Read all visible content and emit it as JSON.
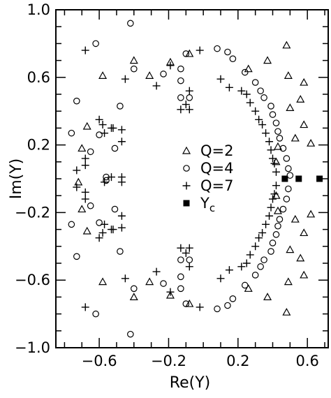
{
  "chart_data": {
    "type": "scatter",
    "title": "",
    "xlabel": "Re(Y)",
    "ylabel": "Im(Y)",
    "xlim": [
      -0.85,
      0.72
    ],
    "ylim": [
      -1.0,
      1.0
    ],
    "grid": false,
    "legend_position": "center-right",
    "x_ticks": [
      -0.6,
      -0.2,
      0.2,
      0.6
    ],
    "x_tick_labels": [
      "−0.6",
      "−0.2",
      "0.2",
      "0.6"
    ],
    "y_ticks": [
      1.0,
      0.6,
      0.2,
      -0.2,
      -0.6,
      -1.0
    ],
    "y_tick_labels": [
      "1.0",
      "0.6",
      "0.2",
      "−0.2",
      "−0.6",
      "−1.0"
    ],
    "series": [
      {
        "name": "Q=2",
        "marker": "triangle",
        "points": [
          [
            0.48,
            0.79
          ],
          [
            0.37,
            0.7
          ],
          [
            0.26,
            0.65
          ],
          [
            0.49,
            0.61
          ],
          [
            0.58,
            0.57
          ],
          [
            0.56,
            0.47
          ],
          [
            0.5,
            0.42
          ],
          [
            0.58,
            0.32
          ],
          [
            0.62,
            0.21
          ],
          [
            0.53,
            0.24
          ],
          [
            0.43,
            0.19
          ],
          [
            0.42,
            0.1
          ],
          [
            -0.08,
            0.74
          ],
          [
            -0.19,
            0.69
          ],
          [
            -0.31,
            0.61
          ],
          [
            -0.4,
            0.7
          ],
          [
            -0.58,
            0.61
          ],
          [
            -0.67,
            0.31
          ],
          [
            -0.7,
            0.18
          ],
          [
            -0.72,
            -0.02
          ],
          [
            0.48,
            -0.79
          ],
          [
            0.37,
            -0.7
          ],
          [
            0.26,
            -0.65
          ],
          [
            0.49,
            -0.61
          ],
          [
            0.58,
            -0.57
          ],
          [
            0.56,
            -0.47
          ],
          [
            0.5,
            -0.42
          ],
          [
            0.58,
            -0.32
          ],
          [
            0.62,
            -0.21
          ],
          [
            0.53,
            -0.24
          ],
          [
            0.43,
            -0.19
          ],
          [
            0.42,
            -0.1
          ],
          [
            -0.08,
            -0.74
          ],
          [
            -0.19,
            -0.69
          ],
          [
            -0.31,
            -0.61
          ],
          [
            -0.4,
            -0.7
          ],
          [
            -0.58,
            -0.61
          ],
          [
            -0.67,
            -0.31
          ],
          [
            -0.7,
            -0.18
          ]
        ]
      },
      {
        "name": "Q=4",
        "marker": "circle",
        "points": [
          [
            -0.42,
            0.92
          ],
          [
            -0.62,
            0.8
          ],
          [
            -0.1,
            0.74
          ],
          [
            0.08,
            0.77
          ],
          [
            0.14,
            0.75
          ],
          [
            -0.4,
            0.65
          ],
          [
            -0.23,
            0.62
          ],
          [
            -0.13,
            0.65
          ],
          [
            -0.13,
            0.58
          ],
          [
            -0.13,
            0.48
          ],
          [
            -0.08,
            0.48
          ],
          [
            -0.73,
            0.46
          ],
          [
            -0.48,
            0.43
          ],
          [
            -0.76,
            0.27
          ],
          [
            -0.6,
            0.26
          ],
          [
            -0.65,
            0.16
          ],
          [
            -0.51,
            0.18
          ],
          [
            -0.56,
            0.01
          ],
          [
            0.17,
            0.71
          ],
          [
            0.24,
            0.63
          ],
          [
            0.3,
            0.57
          ],
          [
            0.33,
            0.52
          ],
          [
            0.35,
            0.48
          ],
          [
            0.39,
            0.43
          ],
          [
            0.4,
            0.38
          ],
          [
            0.42,
            0.33
          ],
          [
            0.43,
            0.28
          ],
          [
            0.44,
            0.24
          ],
          [
            0.46,
            0.18
          ],
          [
            0.48,
            0.12
          ],
          [
            0.49,
            0.06
          ],
          [
            0.5,
            0.02
          ],
          [
            -0.42,
            -0.92
          ],
          [
            -0.62,
            -0.8
          ],
          [
            -0.1,
            -0.74
          ],
          [
            0.08,
            -0.77
          ],
          [
            0.14,
            -0.75
          ],
          [
            -0.4,
            -0.65
          ],
          [
            -0.23,
            -0.62
          ],
          [
            -0.13,
            -0.65
          ],
          [
            -0.13,
            -0.58
          ],
          [
            -0.13,
            -0.48
          ],
          [
            -0.08,
            -0.48
          ],
          [
            -0.73,
            -0.46
          ],
          [
            -0.48,
            -0.43
          ],
          [
            -0.76,
            -0.27
          ],
          [
            -0.6,
            -0.26
          ],
          [
            -0.65,
            -0.16
          ],
          [
            -0.51,
            -0.18
          ],
          [
            -0.56,
            -0.01
          ],
          [
            0.17,
            -0.71
          ],
          [
            0.24,
            -0.63
          ],
          [
            0.3,
            -0.57
          ],
          [
            0.33,
            -0.52
          ],
          [
            0.35,
            -0.48
          ],
          [
            0.39,
            -0.43
          ],
          [
            0.4,
            -0.38
          ],
          [
            0.42,
            -0.33
          ],
          [
            0.43,
            -0.28
          ],
          [
            0.44,
            -0.24
          ],
          [
            0.46,
            -0.18
          ],
          [
            0.48,
            -0.12
          ],
          [
            0.49,
            -0.06
          ]
        ]
      },
      {
        "name": "Q=7",
        "marker": "plus",
        "points": [
          [
            -0.68,
            0.76
          ],
          [
            -0.02,
            0.76
          ],
          [
            -0.6,
            0.35
          ],
          [
            -0.58,
            0.32
          ],
          [
            -0.57,
            0.27
          ],
          [
            -0.53,
            0.3
          ],
          [
            -0.52,
            0.3
          ],
          [
            -0.47,
            0.29
          ],
          [
            -0.47,
            0.22
          ],
          [
            -0.68,
            0.12
          ],
          [
            -0.68,
            0.08
          ],
          [
            -0.73,
            0.05
          ],
          [
            -0.53,
            0.01
          ],
          [
            -0.57,
            -0.02
          ],
          [
            -0.47,
            0.01
          ],
          [
            -0.47,
            -0.02
          ],
          [
            -0.27,
            0.55
          ],
          [
            -0.08,
            0.52
          ],
          [
            -0.1,
            0.44
          ],
          [
            -0.13,
            0.41
          ],
          [
            -0.08,
            0.41
          ],
          [
            -0.45,
            0.59
          ],
          [
            -0.19,
            0.67
          ],
          [
            0.1,
            0.59
          ],
          [
            0.15,
            0.54
          ],
          [
            0.22,
            0.52
          ],
          [
            0.25,
            0.5
          ],
          [
            0.27,
            0.45
          ],
          [
            0.3,
            0.4
          ],
          [
            0.32,
            0.35
          ],
          [
            0.34,
            0.32
          ],
          [
            0.36,
            0.27
          ],
          [
            0.38,
            0.22
          ],
          [
            0.39,
            0.17
          ],
          [
            0.4,
            0.12
          ],
          [
            0.41,
            0.09
          ],
          [
            0.42,
            0.04
          ],
          [
            -0.68,
            -0.76
          ],
          [
            -0.02,
            -0.76
          ],
          [
            -0.6,
            -0.35
          ],
          [
            -0.58,
            -0.32
          ],
          [
            -0.57,
            -0.27
          ],
          [
            -0.53,
            -0.3
          ],
          [
            -0.52,
            -0.3
          ],
          [
            -0.47,
            -0.29
          ],
          [
            -0.47,
            -0.22
          ],
          [
            -0.68,
            -0.12
          ],
          [
            -0.68,
            -0.08
          ],
          [
            -0.73,
            -0.05
          ],
          [
            -0.27,
            -0.55
          ],
          [
            -0.08,
            -0.52
          ],
          [
            -0.1,
            -0.44
          ],
          [
            -0.13,
            -0.41
          ],
          [
            -0.08,
            -0.41
          ],
          [
            -0.45,
            -0.59
          ],
          [
            -0.19,
            -0.67
          ],
          [
            0.1,
            -0.59
          ],
          [
            0.15,
            -0.54
          ],
          [
            0.22,
            -0.52
          ],
          [
            0.25,
            -0.5
          ],
          [
            0.27,
            -0.45
          ],
          [
            0.3,
            -0.4
          ],
          [
            0.32,
            -0.35
          ],
          [
            0.34,
            -0.32
          ],
          [
            0.36,
            -0.27
          ],
          [
            0.38,
            -0.22
          ],
          [
            0.39,
            -0.17
          ],
          [
            0.4,
            -0.12
          ],
          [
            0.41,
            -0.09
          ],
          [
            0.42,
            -0.04
          ]
        ]
      },
      {
        "name": "Y",
        "name_subscript": "c",
        "marker": "square",
        "points": [
          [
            0.47,
            0.0
          ],
          [
            0.55,
            0.0
          ],
          [
            0.67,
            0.0
          ]
        ]
      }
    ]
  }
}
